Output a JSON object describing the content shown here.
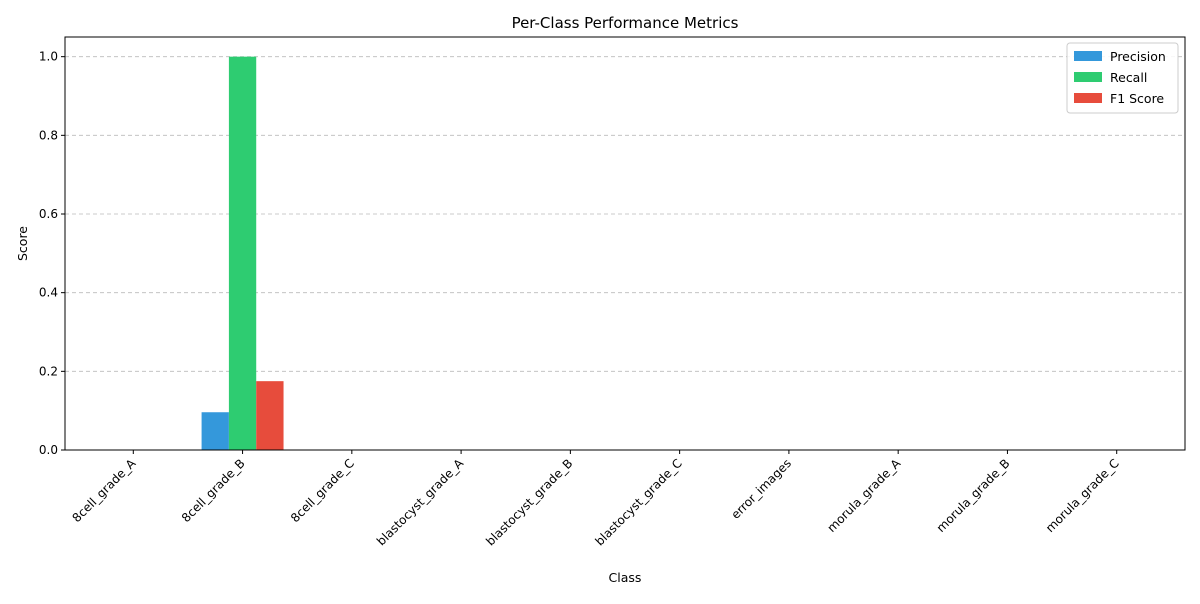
{
  "chart_data": {
    "type": "bar",
    "title": "Per-Class Performance Metrics",
    "xlabel": "Class",
    "ylabel": "Score",
    "categories": [
      "8cell_grade_A",
      "8cell_grade_B",
      "8cell_grade_C",
      "blastocyst_grade_A",
      "blastocyst_grade_B",
      "blastocyst_grade_C",
      "error_images",
      "morula_grade_A",
      "morula_grade_B",
      "morula_grade_C"
    ],
    "series": [
      {
        "name": "Precision",
        "color": "#3498db",
        "values": [
          0,
          0.096,
          0,
          0,
          0,
          0,
          0,
          0,
          0,
          0
        ]
      },
      {
        "name": "Recall",
        "color": "#2ecc71",
        "values": [
          0,
          1.0,
          0,
          0,
          0,
          0,
          0,
          0,
          0,
          0
        ]
      },
      {
        "name": "F1 Score",
        "color": "#e74c3c",
        "values": [
          0,
          0.175,
          0,
          0,
          0,
          0,
          0,
          0,
          0,
          0
        ]
      }
    ],
    "ylim": [
      0,
      1.05
    ],
    "yticks": [
      0.0,
      0.2,
      0.4,
      0.6,
      0.8,
      1.0
    ],
    "ytick_labels": [
      "0.0",
      "0.2",
      "0.4",
      "0.6",
      "0.8",
      "1.0"
    ],
    "grid": "y-dashed",
    "legend_position": "top-right"
  }
}
